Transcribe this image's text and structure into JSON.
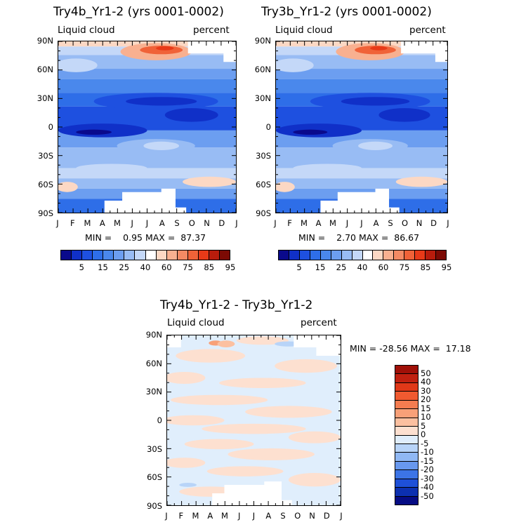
{
  "chart_data": [
    {
      "type": "heatmap",
      "title": "Try4b_Yr1-2 (yrs 0001-0002)",
      "left_label": "Liquid cloud",
      "right_label": "percent",
      "x_ticks": [
        "J",
        "F",
        "M",
        "A",
        "M",
        "J",
        "J",
        "A",
        "S",
        "O",
        "N",
        "D",
        "J"
      ],
      "y_ticks": [
        "90N",
        "60N",
        "30N",
        "0",
        "30S",
        "60S",
        "90S"
      ],
      "ylim": [
        -90,
        90
      ],
      "stats": "MIN =    0.95 MAX =  87.37",
      "colorbar_labels": [
        "5",
        "15",
        "25",
        "40",
        "60",
        "75",
        "85",
        "95"
      ],
      "colorbar_colors": [
        "#0a0a8c",
        "#1030c8",
        "#1e50e0",
        "#2e6ee8",
        "#4a88ec",
        "#6c9ef0",
        "#98bcf4",
        "#c4d8f8",
        "#ffffff",
        "#fcd8c4",
        "#f8b090",
        "#f48a64",
        "#f06238",
        "#e83a18",
        "#b81c0c",
        "#7c0a04"
      ]
    },
    {
      "type": "heatmap",
      "title": "Try3b_Yr1-2 (yrs 0001-0002)",
      "left_label": "Liquid cloud",
      "right_label": "percent",
      "x_ticks": [
        "J",
        "F",
        "M",
        "A",
        "M",
        "J",
        "J",
        "A",
        "S",
        "O",
        "N",
        "D",
        "J"
      ],
      "y_ticks": [
        "90N",
        "60N",
        "30N",
        "0",
        "30S",
        "60S",
        "90S"
      ],
      "ylim": [
        -90,
        90
      ],
      "stats": "MIN =    2.70 MAX =  86.67",
      "colorbar_labels": [
        "5",
        "15",
        "25",
        "40",
        "60",
        "75",
        "85",
        "95"
      ],
      "colorbar_colors": [
        "#0a0a8c",
        "#1030c8",
        "#1e50e0",
        "#2e6ee8",
        "#4a88ec",
        "#6c9ef0",
        "#98bcf4",
        "#c4d8f8",
        "#ffffff",
        "#fcd8c4",
        "#f8b090",
        "#f48a64",
        "#f06238",
        "#e83a18",
        "#b81c0c",
        "#7c0a04"
      ]
    },
    {
      "type": "heatmap",
      "title": "Try4b_Yr1-2 - Try3b_Yr1-2",
      "left_label": "Liquid cloud",
      "right_label": "percent",
      "x_ticks": [
        "J",
        "F",
        "M",
        "A",
        "M",
        "J",
        "J",
        "A",
        "S",
        "O",
        "N",
        "D",
        "J"
      ],
      "y_ticks": [
        "90N",
        "60N",
        "30N",
        "0",
        "30S",
        "60S",
        "90S"
      ],
      "ylim": [
        -90,
        90
      ],
      "stats": "MIN = -28.56 MAX =  17.18",
      "colorbar_labels": [
        "50",
        "40",
        "30",
        "20",
        "15",
        "10",
        "5",
        "0",
        "-5",
        "-10",
        "-15",
        "-20",
        "-30",
        "-40",
        "-50"
      ],
      "colorbar_colors": [
        "#a01008",
        "#c02010",
        "#e03818",
        "#f05a30",
        "#f47c50",
        "#f8a078",
        "#fcc0a0",
        "#fde0d0",
        "#e0eefc",
        "#b8d4f8",
        "#90b8f4",
        "#6898ee",
        "#3c74e6",
        "#1e50d8",
        "#0c30b0",
        "#060c84"
      ]
    }
  ]
}
